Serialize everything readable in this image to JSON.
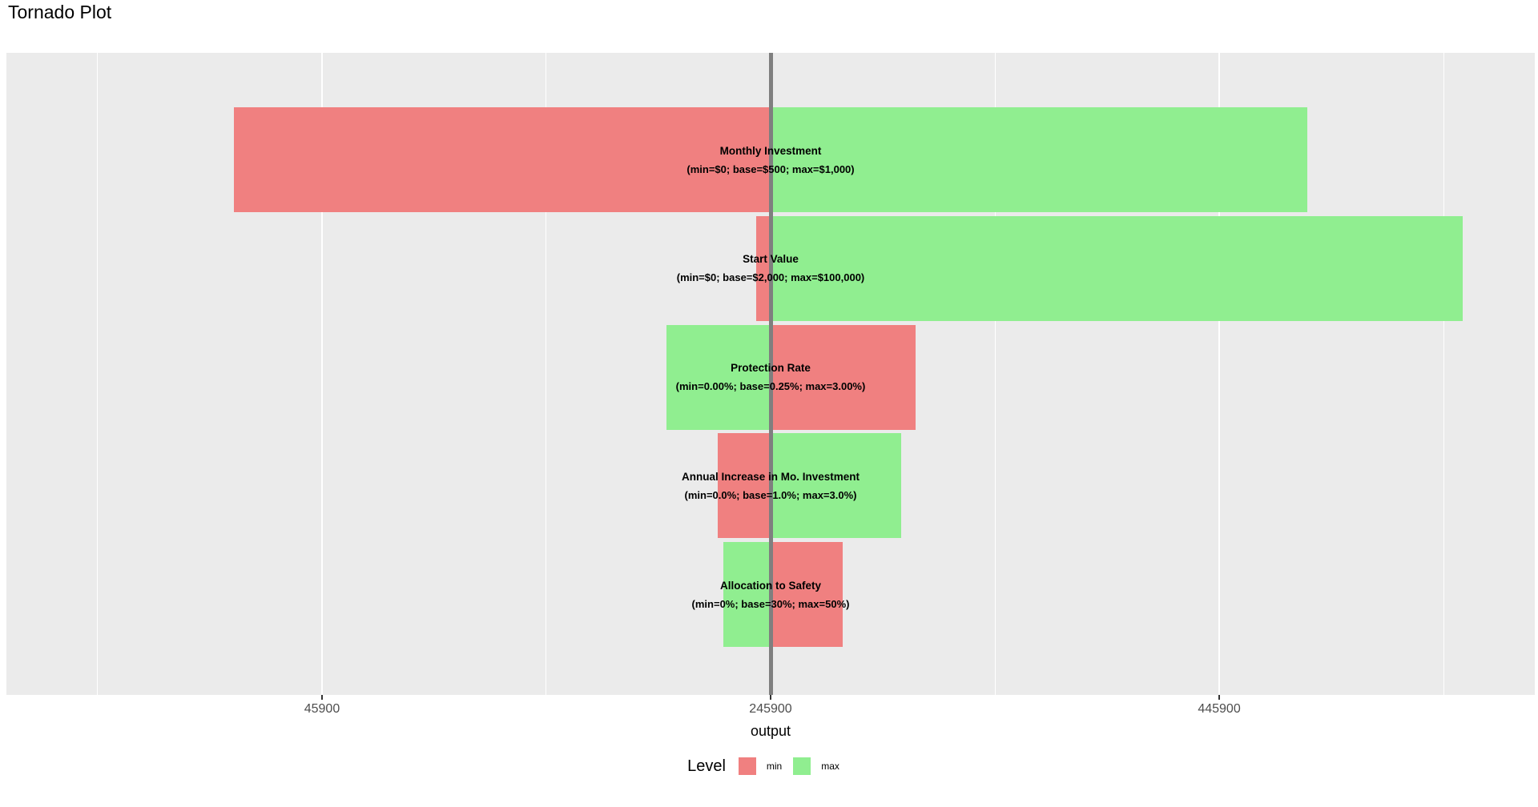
{
  "chart_data": {
    "type": "bar",
    "variant": "tornado",
    "orientation": "horizontal",
    "title": "Tornado Plot",
    "xlabel": "output",
    "base_output": 245900,
    "x_ticks": [
      45900,
      245900,
      445900
    ],
    "x_minor_ticks": [
      -54100,
      145900,
      345900,
      545900
    ],
    "xlim": [
      -94800,
      586600
    ],
    "grid": "on",
    "legend_position": "bottom",
    "rows": [
      {
        "name": "Monthly Investment",
        "range_label": "(min=$0; base=$500; max=$1,000)",
        "min_output": 6600,
        "max_output": 485200
      },
      {
        "name": "Start Value",
        "range_label": "(min=$0; base=$2,000; max=$100,000)",
        "min_output": 239500,
        "max_output": 554500
      },
      {
        "name": "Protection Rate",
        "range_label": "(min=0.00%; base=0.25%; max=3.00%)",
        "min_output": 310500,
        "max_output": 199500
      },
      {
        "name": "Annual Increase in Mo. Investment",
        "range_label": "(min=0.0%; base=1.0%; max=3.0%)",
        "min_output": 222300,
        "max_output": 304100
      },
      {
        "name": "Allocation to Safety",
        "range_label": "(min=0%; base=30%; max=50%)",
        "min_output": 278000,
        "max_output": 224800
      }
    ],
    "legend": {
      "title": "Level",
      "items": [
        {
          "label": "min",
          "color": "#F08080"
        },
        {
          "label": "max",
          "color": "#90EE90"
        }
      ]
    },
    "colors": {
      "min_bar": "#F08080",
      "max_bar": "#90EE90",
      "panel_background": "#EBEBEB",
      "gridline": "#FFFFFF",
      "baseline": "#7F7F7F",
      "tick_text": "#4D4D4D"
    }
  }
}
